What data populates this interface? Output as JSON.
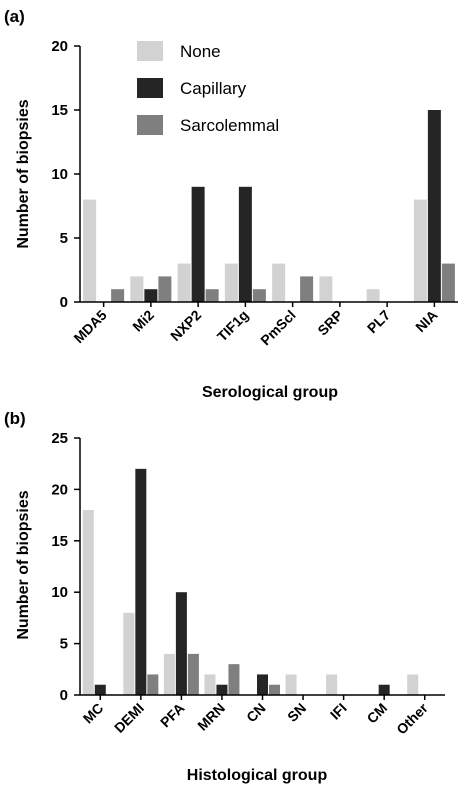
{
  "colors": {
    "None": "#d2d2d2",
    "Capillary": "#252525",
    "Sarcolemmal": "#7f7f7f"
  },
  "chart_data": [
    {
      "type": "bar",
      "panel_label": "(a)",
      "xlabel": "Serological group",
      "ylabel": "Number of biopsies",
      "ylim": [
        0,
        20
      ],
      "yticks": [
        "0",
        "5",
        "10",
        "15",
        "20"
      ],
      "categories": [
        "MDA5",
        "Mi2",
        "NXP2",
        "TIF1g",
        "PmScl",
        "SRP",
        "PL7",
        "NIA"
      ],
      "series": [
        {
          "name": "None",
          "values": [
            8,
            2,
            3,
            3,
            3,
            2,
            1,
            8
          ]
        },
        {
          "name": "Capillary",
          "values": [
            0,
            1,
            9,
            9,
            0,
            0,
            0,
            15
          ]
        },
        {
          "name": "Sarcolemmal",
          "values": [
            1,
            2,
            1,
            1,
            2,
            0,
            0,
            3
          ]
        }
      ],
      "legend": "top-left"
    },
    {
      "type": "bar",
      "panel_label": "(b)",
      "xlabel": "Histological group",
      "ylabel": "Number of biopsies",
      "ylim": [
        0,
        25
      ],
      "yticks": [
        "0",
        "5",
        "10",
        "15",
        "20",
        "25"
      ],
      "categories": [
        "MC",
        "DEMI",
        "PFA",
        "MRN",
        "CN",
        "SN",
        "IFI",
        "CM",
        "Other"
      ],
      "series": [
        {
          "name": "None",
          "values": [
            18,
            8,
            4,
            2,
            0,
            2,
            2,
            0,
            2
          ]
        },
        {
          "name": "Capillary",
          "values": [
            1,
            22,
            10,
            1,
            2,
            0,
            0,
            1,
            0
          ]
        },
        {
          "name": "Sarcolemmal",
          "values": [
            0,
            2,
            4,
            3,
            1,
            0,
            0,
            0,
            0
          ]
        }
      ]
    }
  ]
}
